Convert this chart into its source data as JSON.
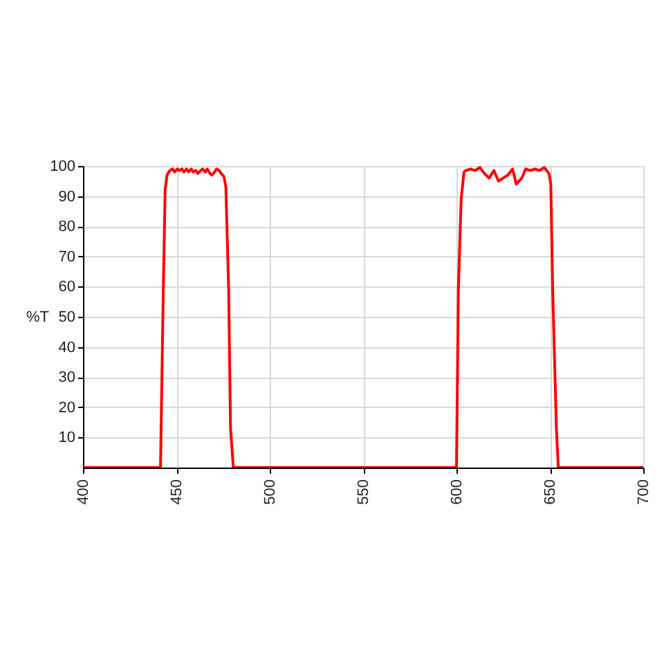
{
  "chart_data": {
    "type": "line",
    "ylabel": "%T",
    "color": "#ff0000",
    "x": [
      400,
      441.5,
      443,
      444,
      445,
      446.5,
      448,
      449,
      450.5,
      451.5,
      453,
      454,
      455.5,
      456.5,
      458,
      459,
      460.5,
      461.5,
      463,
      464,
      465.5,
      466.5,
      468,
      469,
      470.5,
      471.5,
      473,
      474,
      475.5,
      476.5,
      478,
      479,
      480.5,
      600,
      601,
      602.5,
      604,
      605,
      607.5,
      610,
      612.5,
      615,
      617.5,
      620,
      622.5,
      625,
      627.5,
      630,
      632,
      635,
      637,
      639.5,
      642,
      644.5,
      647,
      649.5,
      650.5,
      651.5,
      653.5,
      654.5,
      700
    ],
    "values": [
      0,
      0,
      59,
      92,
      97,
      98.5,
      99,
      98,
      99,
      98.5,
      99,
      98,
      99,
      98,
      99,
      98,
      98.5,
      97.5,
      98.5,
      99,
      98,
      99,
      97.5,
      97,
      98,
      99,
      98.5,
      97.5,
      96.5,
      93,
      59,
      13,
      0,
      0,
      59,
      89,
      98,
      98.5,
      99,
      98.5,
      99.5,
      97.5,
      96,
      98.5,
      95,
      96,
      97,
      99,
      94,
      96,
      99,
      98.5,
      99,
      98.5,
      99.5,
      97.5,
      94,
      59,
      13,
      0,
      0
    ],
    "xlim": [
      400,
      700
    ],
    "ylim": [
      0,
      100
    ],
    "xticks": [
      400,
      450,
      500,
      550,
      600,
      650,
      700
    ],
    "yticks": [
      10,
      20,
      30,
      40,
      50,
      60,
      70,
      80,
      90,
      100
    ],
    "grid": true,
    "marker": "none",
    "line_style": "solid"
  }
}
